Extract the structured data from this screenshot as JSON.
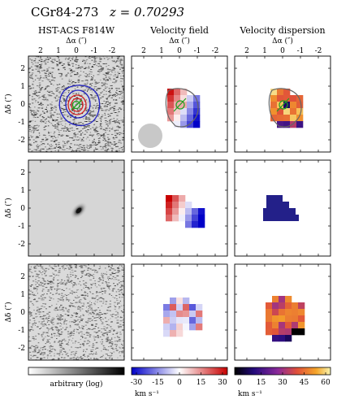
{
  "figure": {
    "object_name": "CGr84-273",
    "redshift_label": "z = 0.70293",
    "column_titles": [
      "HST-ACS F814W",
      "Velocity field",
      "Velocity dispersion"
    ],
    "x_axis_label": "Δα (″)",
    "y_axis_label": "Δδ (″)",
    "x_ticks": [
      "2",
      "1",
      "0",
      "-1",
      "-2"
    ],
    "y_ticks": [
      "2",
      "1",
      "0",
      "-1",
      "-2"
    ],
    "colorbars": [
      {
        "label": "arbitrary (log)",
        "ticks": [],
        "colors": [
          "#ffffff",
          "#000000"
        ]
      },
      {
        "label": "km s⁻¹",
        "ticks": [
          "-30",
          "-15",
          "0",
          "15",
          "30"
        ],
        "colors": [
          "#0000d0",
          "#ffffff",
          "#d00000"
        ]
      },
      {
        "label": "km s⁻¹",
        "ticks": [
          "0",
          "15",
          "30",
          "45",
          "60"
        ],
        "colors": [
          "#000000",
          "#2b0a8c",
          "#8a2a9a",
          "#d84a3a",
          "#f5a22a",
          "#f5f5b0"
        ]
      }
    ]
  }
}
